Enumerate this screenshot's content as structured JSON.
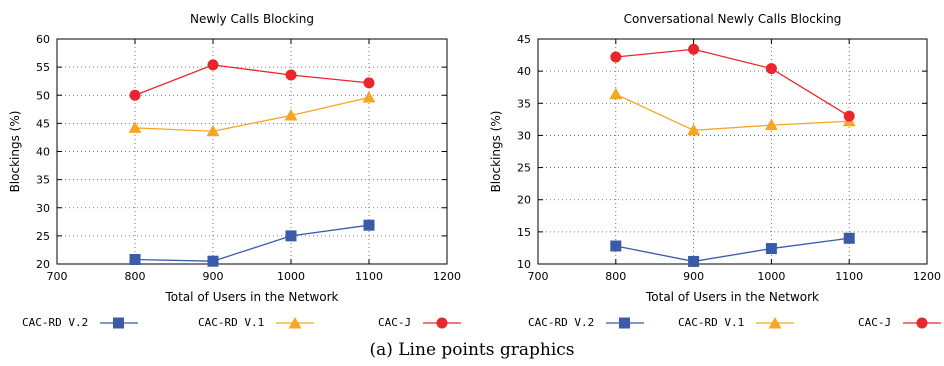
{
  "caption": "(a)  Line points graphics",
  "colors": {
    "series0": "#3a5ba8",
    "series1": "#f5a623",
    "series2": "#e8262b"
  },
  "chart_data": [
    {
      "type": "line",
      "title": "Newly Calls Blocking",
      "xlabel": "Total of Users in the Network",
      "ylabel": "Blockings (%)",
      "xlim": [
        700,
        1200
      ],
      "ylim": [
        20,
        60
      ],
      "xticks": [
        700,
        800,
        900,
        1000,
        1100,
        1200
      ],
      "yticks": [
        20,
        25,
        30,
        35,
        40,
        45,
        50,
        55,
        60
      ],
      "grid": true,
      "legend_position": "bottom",
      "series": [
        {
          "name": "CAC-RD V.2",
          "marker": "square",
          "color": "#3a5ba8",
          "x": [
            800,
            900,
            1000,
            1100
          ],
          "y": [
            20.8,
            20.5,
            25.0,
            26.9
          ]
        },
        {
          "name": "CAC-RD V.1",
          "marker": "triangle",
          "color": "#f5a623",
          "x": [
            800,
            900,
            1000,
            1100
          ],
          "y": [
            44.2,
            43.6,
            46.4,
            49.6
          ]
        },
        {
          "name": "CAC-J",
          "marker": "circle",
          "color": "#e8262b",
          "x": [
            800,
            900,
            1000,
            1100
          ],
          "y": [
            50.0,
            55.4,
            53.6,
            52.2
          ]
        }
      ]
    },
    {
      "type": "line",
      "title": "Conversational Newly Calls Blocking",
      "xlabel": "Total of Users in the Network",
      "ylabel": "Blockings (%)",
      "xlim": [
        700,
        1200
      ],
      "ylim": [
        10,
        45
      ],
      "xticks": [
        700,
        800,
        900,
        1000,
        1100,
        1200
      ],
      "yticks": [
        10,
        15,
        20,
        25,
        30,
        35,
        40,
        45
      ],
      "grid": true,
      "legend_position": "bottom",
      "series": [
        {
          "name": "CAC-RD V.2",
          "marker": "square",
          "color": "#3a5ba8",
          "x": [
            800,
            900,
            1000,
            1100
          ],
          "y": [
            12.8,
            10.4,
            12.4,
            14.0
          ]
        },
        {
          "name": "CAC-RD V.1",
          "marker": "triangle",
          "color": "#f5a623",
          "x": [
            800,
            900,
            1000,
            1100
          ],
          "y": [
            36.4,
            30.8,
            31.6,
            32.2
          ]
        },
        {
          "name": "CAC-J",
          "marker": "circle",
          "color": "#e8262b",
          "x": [
            800,
            900,
            1000,
            1100
          ],
          "y": [
            42.2,
            43.4,
            40.4,
            33.0
          ]
        }
      ]
    }
  ]
}
